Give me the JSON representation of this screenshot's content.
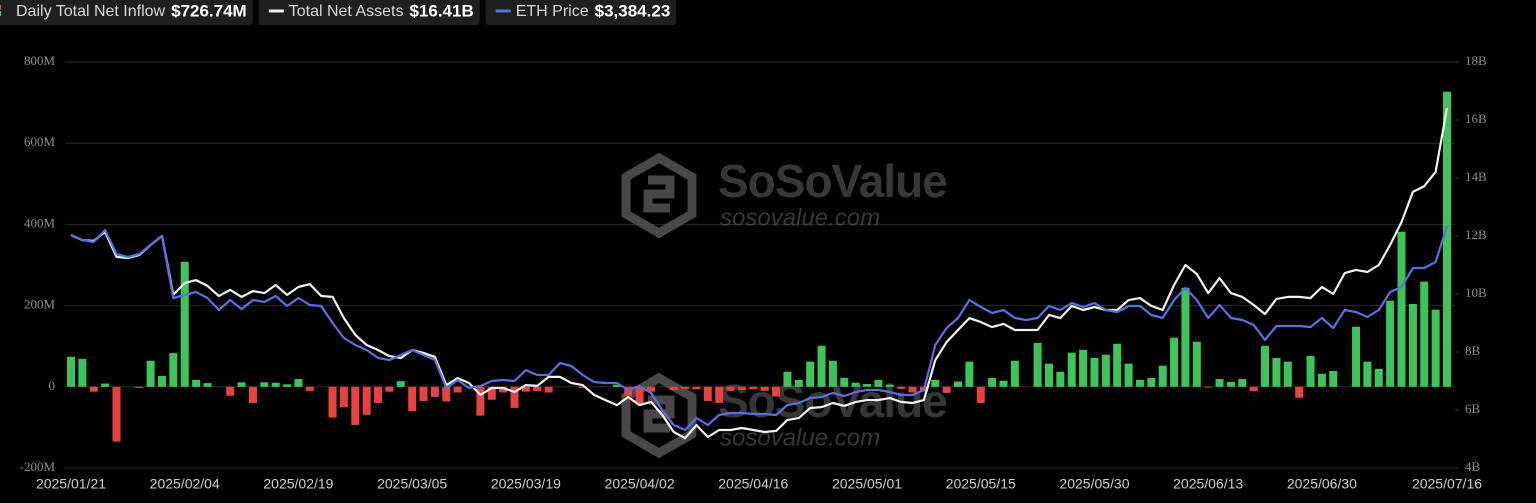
{
  "chart_data": {
    "type": "combo",
    "watermark": "SoSoValue",
    "watermark_url": "sosovalue.com",
    "categories": [
      "2025/01/21",
      null,
      null,
      null,
      null,
      null,
      null,
      null,
      null,
      null,
      "2025/02/04",
      null,
      null,
      null,
      null,
      null,
      null,
      null,
      null,
      null,
      "2025/02/19",
      null,
      null,
      null,
      null,
      null,
      null,
      null,
      null,
      null,
      "2025/03/05",
      null,
      null,
      null,
      null,
      null,
      null,
      null,
      null,
      null,
      "2025/03/19",
      null,
      null,
      null,
      null,
      null,
      null,
      null,
      null,
      null,
      "2025/04/02",
      null,
      null,
      null,
      null,
      null,
      null,
      null,
      null,
      null,
      "2025/04/16",
      null,
      null,
      null,
      null,
      null,
      null,
      null,
      null,
      null,
      "2025/05/01",
      null,
      null,
      null,
      null,
      null,
      null,
      null,
      null,
      null,
      "2025/05/15",
      null,
      null,
      null,
      null,
      null,
      null,
      null,
      null,
      null,
      "2025/05/30",
      null,
      null,
      null,
      null,
      null,
      null,
      null,
      null,
      null,
      "2025/06/13",
      null,
      null,
      null,
      null,
      null,
      null,
      null,
      null,
      null,
      "2025/06/30",
      null,
      null,
      null,
      null,
      null,
      null,
      null,
      null,
      null,
      null,
      "2025/07/16"
    ],
    "series": [
      {
        "name": "Daily Total Net Inflow",
        "type": "bar",
        "color": "#3ec45a",
        "negative_color": "#e84142",
        "latest_label": "$726.74M",
        "values": [
          74,
          69,
          -12,
          8,
          -135,
          0,
          -3,
          64,
          27,
          83,
          308,
          17,
          9,
          0,
          -22,
          11,
          -40,
          11,
          10,
          6,
          19,
          -10,
          0,
          -76,
          -50,
          -94,
          -69,
          -40,
          -12,
          14,
          -60,
          -35,
          -25,
          -36,
          -14,
          0,
          -71,
          -32,
          -14,
          -52,
          -12,
          -10,
          -14,
          0,
          0,
          -3,
          0,
          0,
          5,
          -22,
          -44,
          -12,
          0,
          -8,
          -5,
          -6,
          -35,
          -40,
          -10,
          -8,
          -6,
          -10,
          -24,
          37,
          17,
          62,
          101,
          64,
          22,
          10,
          7,
          17,
          5,
          -5,
          -14,
          -12,
          17,
          -15,
          13,
          62,
          -40,
          22,
          15,
          64,
          0,
          108,
          57,
          37,
          84,
          91,
          71,
          79,
          106,
          57,
          17,
          22,
          52,
          121,
          244,
          111,
          -2,
          19,
          12,
          19,
          -11,
          101,
          71,
          62,
          -27,
          76,
          32,
          39,
          0,
          148,
          62,
          44,
          212,
          382,
          204,
          259,
          190,
          726.74
        ]
      },
      {
        "name": "Total Net Assets",
        "type": "line",
        "axis": "y2",
        "color": "#f2f2f2",
        "latest_label": "$16.41B",
        "values": [
          12.03,
          11.86,
          11.83,
          12.14,
          11.28,
          11.24,
          11.34,
          11.69,
          12.0,
          9.97,
          10.38,
          10.48,
          10.28,
          9.93,
          10.14,
          9.9,
          10.1,
          10.03,
          10.31,
          9.97,
          10.24,
          10.34,
          9.93,
          9.9,
          9.17,
          8.59,
          8.24,
          8.07,
          7.86,
          7.79,
          8.07,
          7.97,
          7.83,
          6.86,
          7.1,
          6.93,
          6.52,
          6.76,
          6.76,
          6.62,
          6.86,
          6.83,
          7.14,
          7.14,
          6.93,
          6.86,
          6.52,
          6.34,
          6.17,
          6.45,
          6.17,
          6.28,
          5.83,
          5.24,
          5.03,
          5.48,
          5.07,
          5.31,
          5.31,
          5.38,
          5.31,
          5.24,
          5.28,
          5.66,
          5.72,
          6.07,
          6.1,
          6.24,
          6.14,
          6.28,
          6.34,
          6.34,
          6.41,
          6.28,
          6.24,
          6.34,
          7.72,
          8.34,
          8.76,
          9.17,
          9.03,
          8.86,
          8.97,
          8.76,
          8.76,
          8.76,
          9.28,
          9.17,
          9.59,
          9.45,
          9.55,
          9.45,
          9.45,
          9.79,
          9.86,
          9.59,
          9.45,
          10.31,
          11.0,
          10.69,
          10.03,
          10.55,
          10.03,
          9.9,
          9.62,
          9.31,
          9.83,
          9.9,
          9.9,
          9.86,
          10.24,
          10.0,
          10.72,
          10.83,
          10.76,
          11.0,
          11.69,
          12.48,
          13.52,
          13.72,
          14.21,
          16.41
        ]
      },
      {
        "name": "ETH Price",
        "type": "line",
        "axis": "y3",
        "color": "#5a6fe0",
        "latest_label": "$3,384.23",
        "values": [
          3296,
          3246,
          3227,
          3345,
          3108,
          3079,
          3108,
          3197,
          3286,
          2675,
          2704,
          2734,
          2675,
          2557,
          2655,
          2566,
          2655,
          2635,
          2695,
          2596,
          2675,
          2606,
          2596,
          2429,
          2281,
          2212,
          2163,
          2084,
          2064,
          2113,
          2163,
          2113,
          2064,
          1788,
          1867,
          1788,
          1808,
          1857,
          1867,
          1857,
          1965,
          1916,
          1916,
          2034,
          2005,
          1916,
          1847,
          1837,
          1837,
          1768,
          1808,
          1739,
          1571,
          1424,
          1374,
          1493,
          1424,
          1522,
          1542,
          1542,
          1532,
          1532,
          1522,
          1621,
          1640,
          1690,
          1699,
          1739,
          1709,
          1749,
          1768,
          1768,
          1749,
          1719,
          1719,
          1768,
          2212,
          2379,
          2478,
          2655,
          2586,
          2527,
          2557,
          2478,
          2458,
          2478,
          2596,
          2557,
          2626,
          2586,
          2626,
          2557,
          2537,
          2596,
          2596,
          2507,
          2478,
          2655,
          2773,
          2655,
          2478,
          2606,
          2478,
          2458,
          2409,
          2261,
          2399,
          2399,
          2399,
          2389,
          2478,
          2379,
          2557,
          2537,
          2488,
          2557,
          2734,
          2783,
          2970,
          2970,
          3030,
          3384.23
        ]
      }
    ],
    "ylim": [
      -200,
      800
    ],
    "yticks": [
      {
        "value": -200,
        "label": "-200M"
      },
      {
        "value": 0,
        "label": "0"
      },
      {
        "value": 200,
        "label": "200M"
      },
      {
        "value": 400,
        "label": "400M"
      },
      {
        "value": 600,
        "label": "600M"
      },
      {
        "value": 800,
        "label": "800M"
      }
    ],
    "y2lim": [
      4,
      18
    ],
    "y2ticks": [
      {
        "value": 4,
        "label": "4B"
      },
      {
        "value": 6,
        "label": "6B"
      },
      {
        "value": 8,
        "label": "8B"
      },
      {
        "value": 10,
        "label": "10B"
      },
      {
        "value": 12,
        "label": "12B"
      },
      {
        "value": 14,
        "label": "14B"
      },
      {
        "value": 16,
        "label": "16B"
      },
      {
        "value": 18,
        "label": "18B"
      }
    ],
    "y3lim": [
      1000,
      5000
    ],
    "grid": true
  }
}
